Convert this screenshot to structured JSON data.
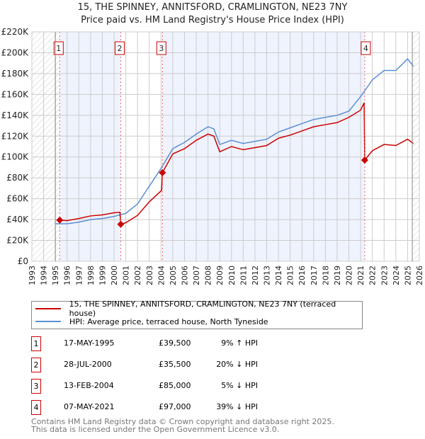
{
  "chart_data": {
    "type": "line",
    "title": "15, THE SPINNEY, ANNITSFORD, CRAMLINGTON, NE23 7NY",
    "subtitle": "Price paid vs. HM Land Registry's House Price Index (HPI)",
    "xlim": [
      1993,
      2026
    ],
    "ylim": [
      0,
      220000
    ],
    "x_ticks": [
      "1993",
      "1994",
      "1995",
      "1996",
      "1997",
      "1998",
      "1999",
      "2000",
      "2001",
      "2002",
      "2003",
      "2004",
      "2005",
      "2006",
      "2007",
      "2008",
      "2009",
      "2010",
      "2011",
      "2012",
      "2013",
      "2014",
      "2015",
      "2016",
      "2017",
      "2018",
      "2019",
      "2020",
      "2021",
      "2022",
      "2023",
      "2024",
      "2025",
      "2026"
    ],
    "y_ticks": [
      {
        "v": 0,
        "label": "£0"
      },
      {
        "v": 20000,
        "label": "£20K"
      },
      {
        "v": 40000,
        "label": "£40K"
      },
      {
        "v": 60000,
        "label": "£60K"
      },
      {
        "v": 80000,
        "label": "£80K"
      },
      {
        "v": 100000,
        "label": "£100K"
      },
      {
        "v": 120000,
        "label": "£120K"
      },
      {
        "v": 140000,
        "label": "£140K"
      },
      {
        "v": 160000,
        "label": "£160K"
      },
      {
        "v": 180000,
        "label": "£180K"
      },
      {
        "v": 200000,
        "label": "£200K"
      },
      {
        "v": 220000,
        "label": "£220K"
      }
    ],
    "grid": true,
    "series": [
      {
        "name": "15, THE SPINNEY, ANNITSFORD, CRAMLINGTON, NE23 7NY (terraced house)",
        "color": "#cc0000",
        "x": [
          1995.37,
          1996,
          1997,
          1998,
          1999,
          2000,
          2000.5,
          2000.57,
          2001,
          2002,
          2003,
          2004.05,
          2004.12,
          2005,
          2006,
          2007,
          2008,
          2008.5,
          2009,
          2010,
          2011,
          2012,
          2013,
          2014,
          2015,
          2016,
          2017,
          2018,
          2019,
          2020,
          2021,
          2021.3,
          2021.35,
          2022,
          2023,
          2024,
          2025,
          2025.5
        ],
        "y": [
          39500,
          39000,
          41000,
          43500,
          44500,
          46500,
          47000,
          35500,
          37000,
          44000,
          57000,
          68000,
          85000,
          103000,
          108000,
          116000,
          122000,
          120000,
          105000,
          110000,
          107000,
          109000,
          111000,
          118000,
          121000,
          125000,
          129000,
          131000,
          133000,
          138000,
          145000,
          152000,
          97000,
          106000,
          112000,
          111000,
          117000,
          113000
        ]
      },
      {
        "name": "HPI: Average price, terraced house, North Tyneside",
        "color": "#5b8fd4",
        "x": [
          1995,
          1996,
          1997,
          1998,
          1999,
          2000,
          2001,
          2002,
          2003,
          2004,
          2005,
          2006,
          2007,
          2008,
          2008.5,
          2009,
          2010,
          2011,
          2012,
          2013,
          2014,
          2015,
          2016,
          2017,
          2018,
          2019,
          2020,
          2021,
          2022,
          2023,
          2024,
          2025,
          2025.5
        ],
        "y": [
          36000,
          36000,
          37500,
          40000,
          41000,
          43000,
          46000,
          55000,
          72000,
          89000,
          108000,
          114000,
          122000,
          129000,
          127000,
          112000,
          116000,
          113000,
          115000,
          117000,
          124000,
          128000,
          132000,
          136000,
          138000,
          140000,
          144000,
          158000,
          174000,
          183000,
          183000,
          194000,
          187000
        ]
      }
    ],
    "sales": [
      {
        "n": "1",
        "date": "17-MAY-1995",
        "x": 1995.37,
        "price": "£39,500",
        "v": 39500,
        "hpi": "9% ↑ HPI"
      },
      {
        "n": "2",
        "date": "28-JUL-2000",
        "x": 2000.57,
        "price": "£35,500",
        "v": 35500,
        "hpi": "20% ↓ HPI"
      },
      {
        "n": "3",
        "date": "13-FEB-2004",
        "x": 2004.12,
        "price": "£85,000",
        "v": 85000,
        "hpi": "5% ↓ HPI"
      },
      {
        "n": "4",
        "date": "07-MAY-2021",
        "x": 2021.35,
        "price": "£97,000",
        "v": 97000,
        "hpi": "39% ↓ HPI"
      }
    ],
    "legend_placement": "below"
  },
  "footer": {
    "line1": "Contains HM Land Registry data © Crown copyright and database right 2025.",
    "line2": "This data is licensed under the Open Government Licence v3.0."
  }
}
